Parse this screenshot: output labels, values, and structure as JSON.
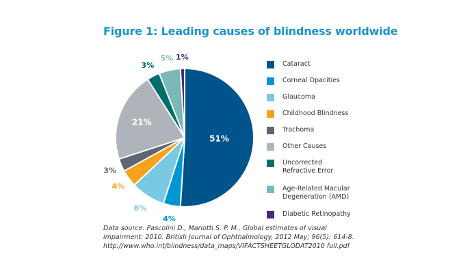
{
  "title": "Figure 1: Leading causes of blindness worldwide",
  "chart_data": {
    "type": "pie",
    "title": "Figure 1: Leading causes of blindness worldwide",
    "slices": [
      {
        "label": "Cataract",
        "value": 51,
        "display": "51%",
        "color": "#00548c",
        "text_color": "#ffffff"
      },
      {
        "label": "Corneal Opacities",
        "value": 4,
        "display": "4%",
        "color": "#0096d1",
        "text_color": "#0096d1"
      },
      {
        "label": "Glaucoma",
        "value": 8,
        "display": "8%",
        "color": "#79c9e2",
        "text_color": "#79c9e2"
      },
      {
        "label": "Childhood Blindness",
        "value": 4,
        "display": "4%",
        "color": "#f5a31b",
        "text_color": "#f5a31b"
      },
      {
        "label": "Trachoma",
        "value": 3,
        "display": "3%",
        "color": "#5d6771",
        "text_color": "#5d6771"
      },
      {
        "label": "Other Causes",
        "value": 21,
        "display": "21%",
        "color": "#aeb4b9",
        "text_color": "#ffffff"
      },
      {
        "label": "Uncorrected Refractive Error",
        "value": 3,
        "display": "3%",
        "color": "#006e6b",
        "text_color": "#006e6b"
      },
      {
        "label": "Age-Related Macular Degeneration (AMD)",
        "value": 5,
        "display": "5%",
        "color": "#79b9b8",
        "text_color": "#79b9b8"
      },
      {
        "label": "Diabetic Retinopathy",
        "value": 1,
        "display": "1%",
        "color": "#4a2a7c",
        "text_color": "#4a2a7c"
      }
    ],
    "legend": {
      "position": "right",
      "items": [
        {
          "lines": [
            "Cataract"
          ],
          "color": "#00548c"
        },
        {
          "lines": [
            "Corneal Opacities"
          ],
          "color": "#0096d1"
        },
        {
          "lines": [
            "Glaucoma"
          ],
          "color": "#79c9e2"
        },
        {
          "lines": [
            "Childhood Blindness"
          ],
          "color": "#f5a31b"
        },
        {
          "lines": [
            "Trachoma"
          ],
          "color": "#5d6771"
        },
        {
          "lines": [
            "Other Causes"
          ],
          "color": "#aeb4b9"
        },
        {
          "lines": [
            "Uncorrected",
            "Refractive Error"
          ],
          "color": "#006e6b"
        },
        {
          "lines": [
            "Age-Related Macular",
            "Degeneration (AMD)"
          ],
          "color": "#79b9b8"
        },
        {
          "lines": [
            "Diabetic Retinopathy"
          ],
          "color": "#4a2a7c"
        }
      ]
    }
  },
  "source": {
    "lines": [
      "Data source: Pascolini D., Mariotti S. P. M., Global estimates of visual",
      "impairment: 2010. British Journal of Ophthalmology, 2012 May; 96(5): 614-8.",
      "http://www.who.int/blindness/data_maps/VIFACTSHEETGLODAT2010 full.pdf"
    ]
  }
}
